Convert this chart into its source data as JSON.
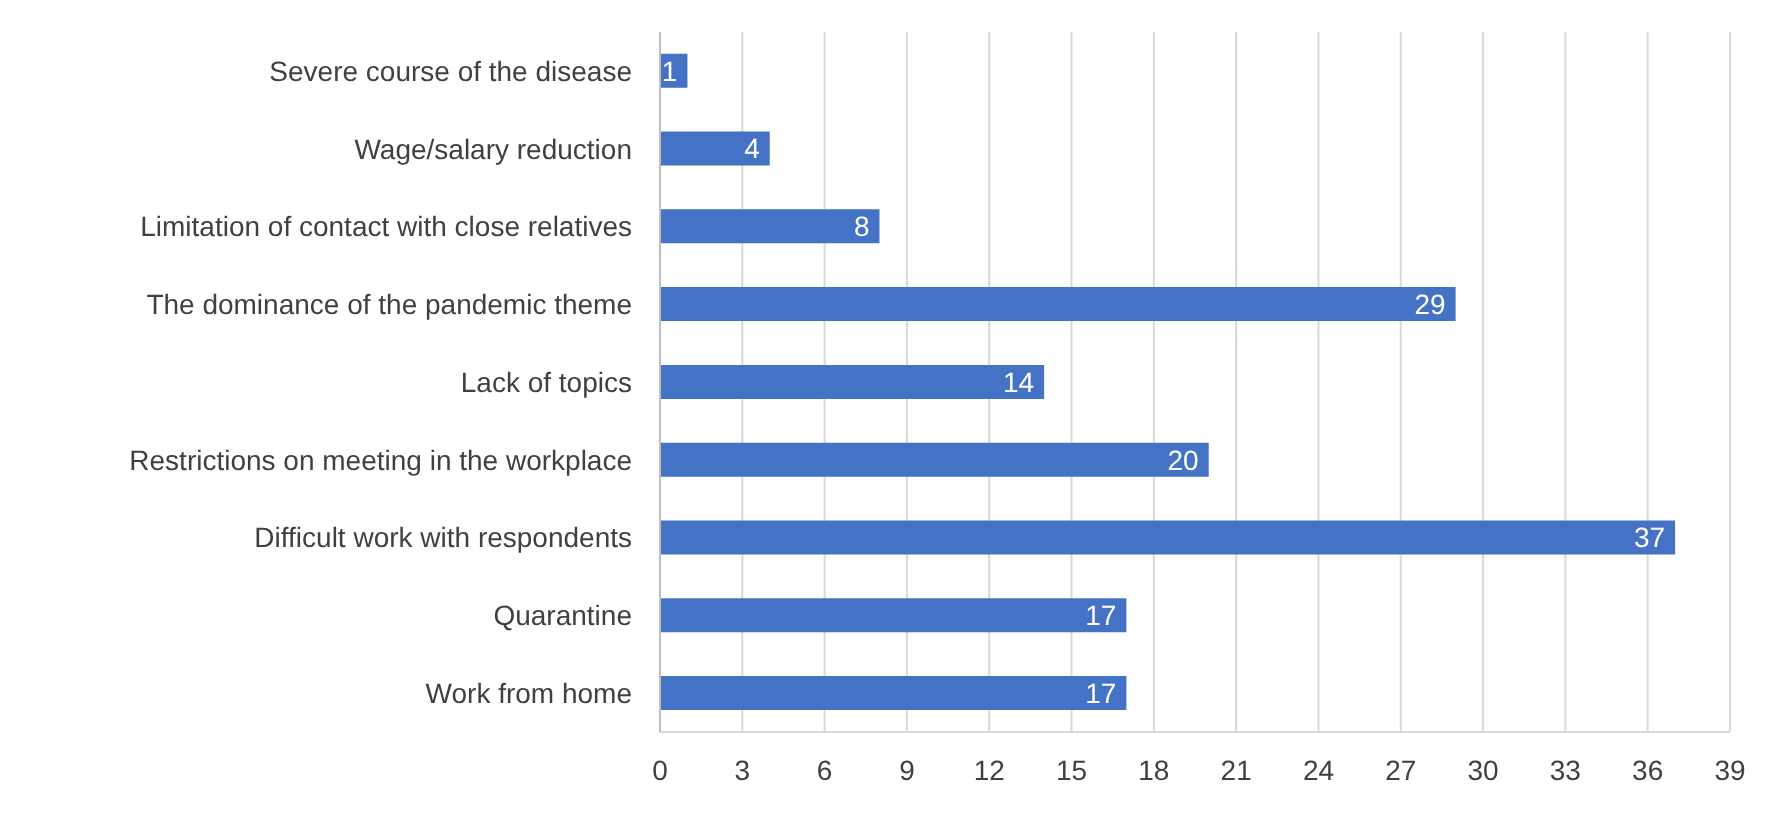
{
  "chart_data": {
    "type": "bar",
    "orientation": "horizontal",
    "categories": [
      "Severe course of the disease",
      "Wage/salary reduction",
      "Limitation of contact with close relatives",
      "The dominance of the pandemic theme",
      "Lack of topics",
      "Restrictions on meeting in the workplace",
      "Difficult work with respondents",
      "Quarantine",
      "Work from home"
    ],
    "values": [
      1,
      4,
      8,
      29,
      14,
      20,
      37,
      17,
      17
    ],
    "color": "#4472c4",
    "xlim": [
      0,
      39
    ],
    "xticks": [
      0,
      3,
      6,
      9,
      12,
      15,
      18,
      21,
      24,
      27,
      30,
      33,
      36,
      39
    ],
    "grid": "x",
    "data_labels": true
  }
}
